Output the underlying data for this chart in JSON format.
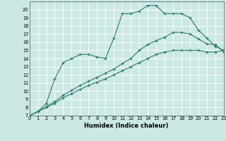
{
  "xlabel": "Humidex (Indice chaleur)",
  "bg_color": "#cce8e4",
  "line_color": "#2d7a6e",
  "xlim": [
    0,
    23
  ],
  "ylim": [
    7,
    21
  ],
  "xticks": [
    0,
    1,
    2,
    3,
    4,
    5,
    6,
    7,
    8,
    9,
    10,
    11,
    12,
    13,
    14,
    15,
    16,
    17,
    18,
    19,
    20,
    21,
    22,
    23
  ],
  "yticks": [
    7,
    8,
    9,
    10,
    11,
    12,
    13,
    14,
    15,
    16,
    17,
    18,
    19,
    20
  ],
  "line1_x": [
    0,
    1,
    2,
    3,
    4,
    5,
    6,
    7,
    8,
    9,
    10,
    11,
    12,
    13,
    14,
    15,
    16,
    17,
    18,
    19,
    20,
    21,
    22,
    23
  ],
  "line1_y": [
    7.0,
    7.5,
    8.0,
    8.5,
    9.2,
    9.7,
    10.2,
    10.7,
    11.1,
    11.5,
    12.0,
    12.5,
    13.0,
    13.5,
    14.0,
    14.5,
    14.8,
    15.0,
    15.0,
    15.0,
    15.0,
    14.8,
    14.8,
    15.0
  ],
  "line2_x": [
    0,
    1,
    2,
    3,
    4,
    5,
    6,
    7,
    8,
    9,
    10,
    11,
    12,
    13,
    14,
    15,
    16,
    17,
    18,
    19,
    20,
    21,
    22,
    23
  ],
  "line2_y": [
    7.0,
    7.5,
    8.1,
    8.7,
    9.5,
    10.1,
    10.7,
    11.2,
    11.7,
    12.2,
    12.7,
    13.4,
    14.0,
    15.0,
    15.7,
    16.2,
    16.6,
    17.2,
    17.2,
    17.0,
    16.4,
    15.8,
    15.7,
    14.8
  ],
  "line3_x": [
    0,
    1,
    2,
    3,
    4,
    5,
    6,
    7,
    8,
    9,
    10,
    11,
    12,
    13,
    14,
    15,
    16,
    17,
    18,
    19,
    20,
    21,
    22,
    23
  ],
  "line3_y": [
    7.0,
    7.5,
    8.5,
    11.5,
    13.5,
    14.0,
    14.5,
    14.5,
    14.2,
    14.0,
    16.5,
    19.5,
    19.5,
    19.8,
    20.5,
    20.5,
    19.5,
    19.5,
    19.5,
    19.0,
    17.5,
    16.5,
    15.5,
    15.0
  ]
}
